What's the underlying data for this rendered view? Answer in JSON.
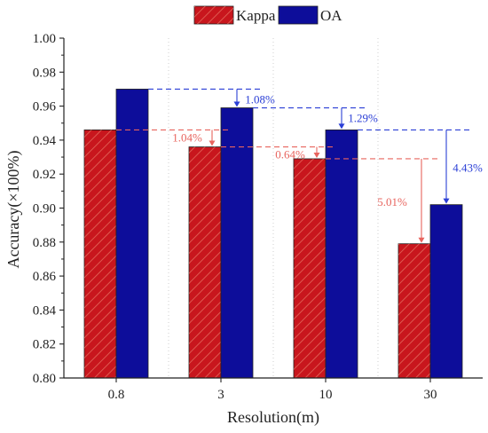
{
  "chart_data": {
    "type": "bar",
    "xlabel": "Resolution(m)",
    "ylabel": "Accuracy(×100%)",
    "ylim": [
      0.8,
      1.0
    ],
    "yticks": [
      "0.80",
      "0.82",
      "0.84",
      "0.86",
      "0.88",
      "0.90",
      "0.92",
      "0.94",
      "0.96",
      "0.98",
      "1.00"
    ],
    "categories": [
      "0.8",
      "3",
      "10",
      "30"
    ],
    "series": [
      {
        "name": "Kappa",
        "values": [
          0.946,
          0.936,
          0.929,
          0.879
        ],
        "color": "#c8161d",
        "hatch": true
      },
      {
        "name": "OA",
        "values": [
          0.97,
          0.959,
          0.946,
          0.902
        ],
        "color": "#0d0d9a",
        "hatch": false
      }
    ],
    "legend_position": "top",
    "grid": false,
    "annotations": [
      {
        "series": "OA",
        "from_category": 0,
        "to_category": 1,
        "label": "1.08%",
        "color": "#2b3fd6"
      },
      {
        "series": "OA",
        "from_category": 1,
        "to_category": 2,
        "label": "1.29%",
        "color": "#2b3fd6"
      },
      {
        "series": "OA",
        "from_category": 2,
        "to_category": 3,
        "label": "4.43%",
        "color": "#2b3fd6"
      },
      {
        "series": "Kappa",
        "from_category": 0,
        "to_category": 1,
        "label": "1.04%",
        "color": "#e8645e"
      },
      {
        "series": "Kappa",
        "from_category": 1,
        "to_category": 2,
        "label": "0.64%",
        "color": "#e8645e"
      },
      {
        "series": "Kappa",
        "from_category": 2,
        "to_category": 3,
        "label": "5.01%",
        "color": "#e8645e"
      }
    ]
  }
}
